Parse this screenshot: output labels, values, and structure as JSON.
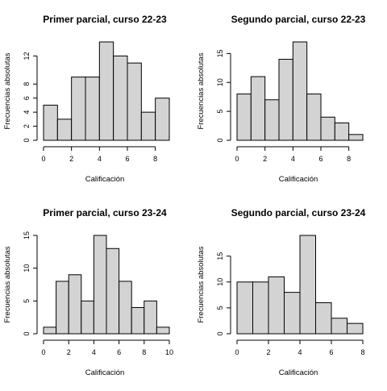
{
  "chart_data": [
    {
      "type": "histogram",
      "title": "Primer parcial, curso 22-23",
      "xlabel": "Calificación",
      "ylabel": "Frecuencias absolutas",
      "breaks": [
        0,
        1,
        2,
        3,
        4,
        5,
        6,
        7,
        8,
        9
      ],
      "values": [
        5,
        3,
        9,
        9,
        14,
        12,
        11,
        4,
        6
      ],
      "xticks": [
        0,
        2,
        4,
        6,
        8
      ],
      "yticks": [
        0,
        2,
        4,
        6,
        8,
        12
      ],
      "xlim": [
        0,
        9
      ],
      "ylim": [
        0,
        14
      ]
    },
    {
      "type": "histogram",
      "title": "Segundo parcial, curso 22-23",
      "xlabel": "Calificación",
      "ylabel": "Frecuencias absolutas",
      "breaks": [
        0,
        1,
        2,
        3,
        4,
        5,
        6,
        7,
        8,
        9
      ],
      "values": [
        8,
        11,
        7,
        14,
        17,
        8,
        4,
        3,
        1
      ],
      "xticks": [
        0,
        2,
        4,
        6,
        8
      ],
      "yticks": [
        0,
        5,
        10,
        15
      ],
      "xlim": [
        0,
        9
      ],
      "ylim": [
        0,
        17
      ]
    },
    {
      "type": "histogram",
      "title": "Primer parcial, curso 23-24",
      "xlabel": "Calificación",
      "ylabel": "Frecuencias absolutas",
      "breaks": [
        0,
        1,
        2,
        3,
        4,
        5,
        6,
        7,
        8,
        9,
        10
      ],
      "values": [
        1,
        8,
        9,
        5,
        15,
        13,
        8,
        4,
        5,
        1
      ],
      "xticks": [
        0,
        2,
        4,
        6,
        8,
        10
      ],
      "yticks": [
        0,
        5,
        10,
        15
      ],
      "xlim": [
        0,
        10
      ],
      "ylim": [
        0,
        15
      ]
    },
    {
      "type": "histogram",
      "title": "Segundo parcial, curso 23-24",
      "xlabel": "Calificación",
      "ylabel": "Frecuencias absolutas",
      "breaks": [
        0,
        1,
        2,
        3,
        4,
        5,
        6,
        7,
        8
      ],
      "values": [
        10,
        10,
        11,
        8,
        19,
        6,
        3,
        2
      ],
      "xticks": [
        0,
        2,
        4,
        6,
        8
      ],
      "yticks": [
        0,
        5,
        10,
        15
      ],
      "xlim": [
        0,
        8
      ],
      "ylim": [
        0,
        19
      ]
    }
  ]
}
